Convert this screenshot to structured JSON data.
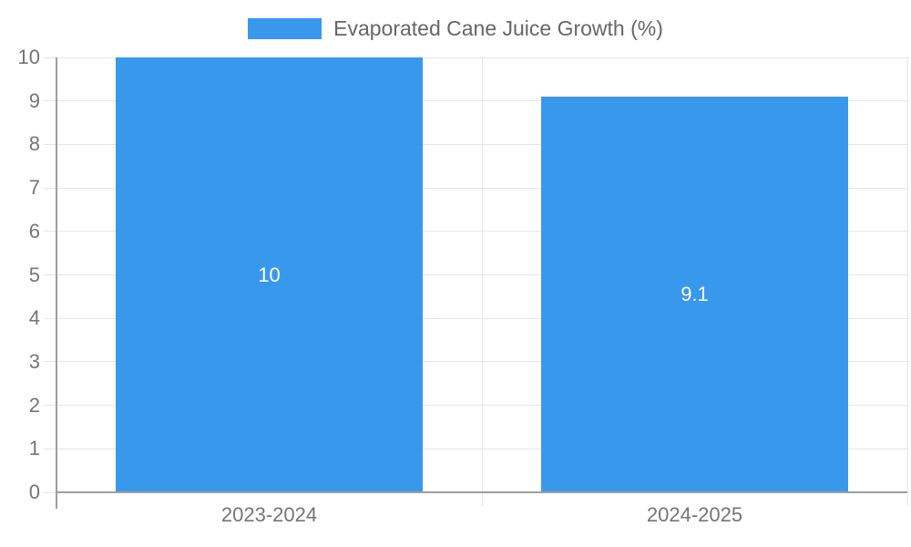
{
  "chart_data": {
    "type": "bar",
    "title": "",
    "legend": {
      "label": "Evaporated Cane Juice Growth (%)",
      "position": "top"
    },
    "categories": [
      "2023-2024",
      "2024-2025"
    ],
    "values": [
      10,
      9.1
    ],
    "bar_labels": [
      "10",
      "9.1"
    ],
    "ylim": [
      0,
      10
    ],
    "yticks": [
      0,
      1,
      2,
      3,
      4,
      5,
      6,
      7,
      8,
      9,
      10
    ],
    "grid": true,
    "legend_visible": true,
    "colors": {
      "bar": "#3898EC",
      "grid": "#e6e6e6",
      "axis": "#9e9e9e",
      "tick_label": "#757575",
      "legend_text": "#666666",
      "bar_label": "#ffffff",
      "background": "#ffffff"
    }
  }
}
